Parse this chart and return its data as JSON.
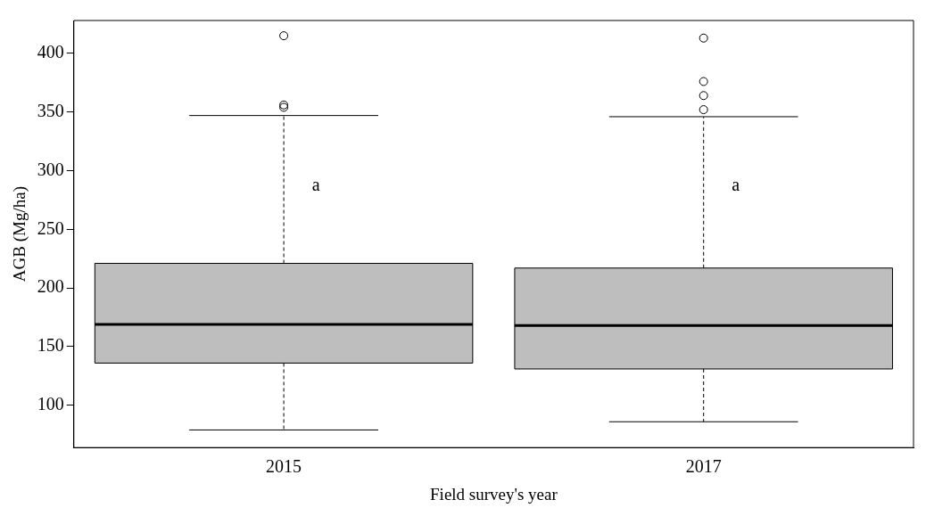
{
  "chart_data": {
    "type": "box",
    "xlabel": "Field survey's year",
    "ylabel": "AGB (Mg/ha)",
    "categories": [
      "2015",
      "2017"
    ],
    "series": [
      {
        "color": "#bebebe",
        "boxes": [
          {
            "low": 79,
            "q1": 136,
            "median": 169,
            "q3": 221,
            "high": 347,
            "outliers": [
              415,
              356,
              354
            ]
          },
          {
            "low": 86,
            "q1": 131,
            "median": 168,
            "q3": 217,
            "high": 346,
            "outliers": [
              413,
              376,
              364,
              352
            ]
          }
        ]
      }
    ],
    "ylim": [
      64,
      428
    ],
    "yticks": [
      100,
      150,
      200,
      250,
      300,
      350,
      400
    ],
    "grid": false,
    "legend": false,
    "marker": "circle",
    "annotations": [
      {
        "text": "a",
        "x": "2015",
        "y": 287
      },
      {
        "text": "a",
        "x": "2017",
        "y": 287
      }
    ]
  }
}
